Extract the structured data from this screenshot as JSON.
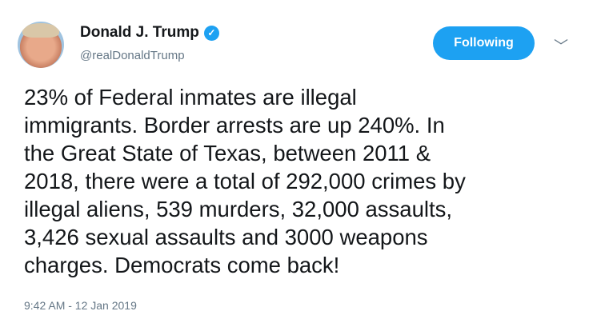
{
  "user": {
    "name": "Donald J. Trump",
    "handle": "@realDonaldTrump",
    "verified": true
  },
  "follow_button": {
    "label": "Following",
    "color": "#1da1f2"
  },
  "tweet": {
    "lines": [
      "23% of Federal inmates are illegal",
      "immigrants. Border arrests are up 240%. In",
      "the Great State of Texas, between 2011 &",
      "2018, there were a total of 292,000 crimes by",
      "illegal aliens, 539 murders, 32,000 assaults,",
      "3,426 sexual assaults and 3000 weapons",
      "charges. Democrats come back!"
    ],
    "timestamp": "9:42 AM - 12 Jan 2019"
  },
  "icons": {
    "verified": "verified-badge-icon",
    "menu": "chevron-down-icon"
  }
}
